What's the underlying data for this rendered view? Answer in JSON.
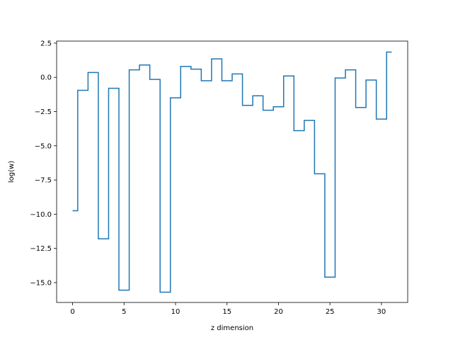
{
  "chart_data": {
    "type": "line",
    "drawstyle": "steps-mid",
    "title": "",
    "xlabel": "z dimension",
    "ylabel": "log(w)",
    "xlim": [
      -1.55,
      32.55
    ],
    "ylim": [
      -16.45,
      2.65
    ],
    "xticks": [
      0,
      5,
      10,
      15,
      20,
      25,
      30
    ],
    "xtick_labels": [
      "0",
      "5",
      "10",
      "15",
      "20",
      "25",
      "30"
    ],
    "yticks": [
      2.5,
      0.0,
      -2.5,
      -5.0,
      -7.5,
      -10.0,
      -12.5,
      -15.0
    ],
    "ytick_labels": [
      "2.5",
      "0.0",
      "−2.5",
      "−5.0",
      "−7.5",
      "−10.0",
      "−12.5",
      "−15.0"
    ],
    "grid": false,
    "series_color": "#1f77b4",
    "series": [
      {
        "x": [
          0,
          1,
          2,
          3,
          4,
          5,
          6,
          7,
          8,
          9,
          10,
          11,
          12,
          13,
          14,
          15,
          16,
          17,
          18,
          19,
          20,
          21,
          22,
          23,
          24,
          25,
          26,
          27,
          28,
          29,
          30,
          31
        ],
        "values": [
          -9.75,
          -0.95,
          0.35,
          -11.8,
          -0.8,
          -15.55,
          0.55,
          0.9,
          -0.15,
          -15.7,
          -1.5,
          0.8,
          0.6,
          -0.25,
          1.35,
          -0.25,
          0.25,
          -2.05,
          -1.35,
          -2.4,
          -2.15,
          0.1,
          -3.9,
          -3.15,
          -7.05,
          -14.6,
          -0.05,
          0.55,
          -2.2,
          -0.2,
          -3.05,
          1.85
        ]
      }
    ]
  }
}
